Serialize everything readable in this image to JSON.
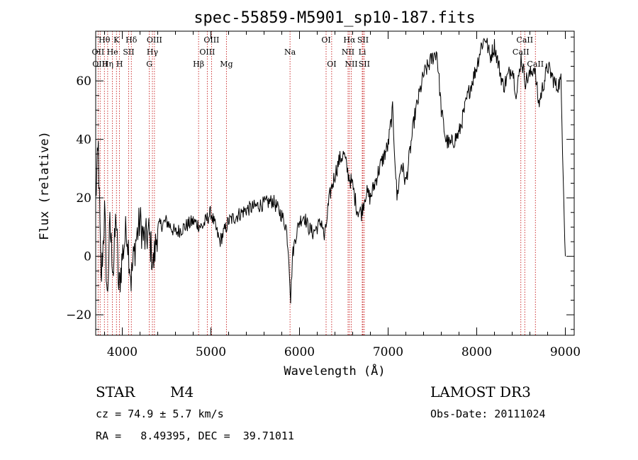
{
  "chart_data": {
    "type": "line",
    "title": "spec-55859-M5901_sp10-187.fits",
    "xlabel": "Wavelength (Å)",
    "ylabel": "Flux (relative)",
    "xlim": [
      3700,
      9100
    ],
    "ylim": [
      -27,
      77
    ],
    "x_ticks": [
      4000,
      5000,
      6000,
      7000,
      8000,
      9000
    ],
    "y_ticks": [
      -20,
      0,
      20,
      40,
      60
    ],
    "series": [
      {
        "name": "flux",
        "x": [
          3700,
          3730,
          3760,
          3800,
          3830,
          3860,
          3900,
          3930,
          3960,
          4000,
          4050,
          4100,
          4150,
          4200,
          4250,
          4300,
          4350,
          4400,
          4500,
          4600,
          4700,
          4800,
          4900,
          5000,
          5100,
          5200,
          5300,
          5400,
          5500,
          5600,
          5700,
          5800,
          5850,
          5880,
          5900,
          5920,
          5950,
          6000,
          6050,
          6100,
          6150,
          6200,
          6250,
          6280,
          6300,
          6320,
          6350,
          6400,
          6450,
          6500,
          6550,
          6600,
          6650,
          6700,
          6750,
          6800,
          6900,
          7000,
          7050,
          7100,
          7150,
          7200,
          7300,
          7400,
          7500,
          7550,
          7600,
          7650,
          7700,
          7800,
          7900,
          8000,
          8050,
          8100,
          8150,
          8200,
          8300,
          8400,
          8450,
          8500,
          8550,
          8600,
          8650,
          8700,
          8800,
          8900,
          8950,
          9000
        ],
        "y": [
          20,
          37,
          -10,
          15,
          -15,
          10,
          -5,
          15,
          -12,
          0,
          10,
          -8,
          5,
          12,
          5,
          8,
          -3,
          10,
          12,
          8,
          10,
          12,
          10,
          15,
          5,
          12,
          14,
          16,
          17,
          18,
          19,
          14,
          10,
          0,
          -15,
          0,
          6,
          12,
          14,
          10,
          8,
          10,
          12,
          6,
          10,
          16,
          22,
          28,
          33,
          35,
          28,
          24,
          16,
          15,
          22,
          20,
          30,
          38,
          50,
          20,
          32,
          25,
          48,
          62,
          68,
          70,
          50,
          40,
          38,
          42,
          55,
          65,
          72,
          75,
          68,
          72,
          58,
          65,
          55,
          68,
          60,
          62,
          65,
          52,
          65,
          58,
          60,
          0
        ]
      }
    ],
    "lines": [
      {
        "label": "Hθ",
        "wave": 3798,
        "row": 0
      },
      {
        "label": "OII",
        "wave": 3727,
        "row": 1
      },
      {
        "label": "OIII",
        "wave": 3750,
        "row": 2
      },
      {
        "label": "K",
        "wave": 3934,
        "row": 0
      },
      {
        "label": "He",
        "wave": 3889,
        "row": 1
      },
      {
        "label": "Hη",
        "wave": 3835,
        "row": 2
      },
      {
        "label": "SII",
        "wave": 4072,
        "row": 1
      },
      {
        "label": "H",
        "wave": 3969,
        "row": 2
      },
      {
        "label": "Hδ",
        "wave": 4102,
        "row": 0
      },
      {
        "label": "OIII",
        "wave": 4363,
        "row": 0
      },
      {
        "label": "Hγ",
        "wave": 4340,
        "row": 1
      },
      {
        "label": "G",
        "wave": 4305,
        "row": 2
      },
      {
        "label": "Hβ",
        "wave": 4861,
        "row": 2
      },
      {
        "label": "OIII",
        "wave": 5007,
        "row": 0
      },
      {
        "label": "OIII",
        "wave": 4959,
        "row": 1
      },
      {
        "label": "Mg",
        "wave": 5175,
        "row": 2
      },
      {
        "label": "Na",
        "wave": 5893,
        "row": 1
      },
      {
        "label": "OI",
        "wave": 6300,
        "row": 0
      },
      {
        "label": "OI",
        "wave": 6363,
        "row": 2
      },
      {
        "label": "Hα",
        "wave": 6563,
        "row": 0
      },
      {
        "label": "SII",
        "wave": 6716,
        "row": 0
      },
      {
        "label": "NII",
        "wave": 6548,
        "row": 1
      },
      {
        "label": "Li",
        "wave": 6708,
        "row": 1
      },
      {
        "label": "NII",
        "wave": 6584,
        "row": 2
      },
      {
        "label": "SII",
        "wave": 6731,
        "row": 2
      },
      {
        "label": "CaII",
        "wave": 8542,
        "row": 0
      },
      {
        "label": "CaII",
        "wave": 8498,
        "row": 1
      },
      {
        "label": "CaII",
        "wave": 8662,
        "row": 2
      }
    ]
  },
  "info": {
    "object_class": "STAR",
    "subclass": "M4",
    "survey": "LAMOST DR3",
    "velocity": "cz = 74.9 ± 5.7 km/s",
    "obs_date": "Obs-Date: 20111024",
    "coords": "RA =   8.49395, DEC =  39.71011"
  }
}
